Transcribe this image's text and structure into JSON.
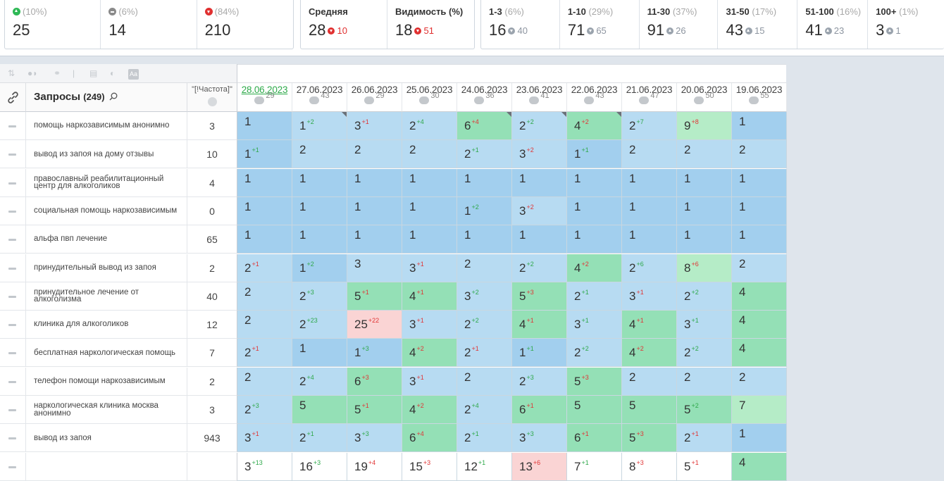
{
  "stats": {
    "top10": {
      "pct": "(10%)",
      "value": "25",
      "icon": "arrow-up-circle-icon"
    },
    "mid": {
      "pct": "(6%)",
      "value": "14",
      "icon": "minus-circle-icon"
    },
    "down": {
      "pct": "(84%)",
      "value": "210",
      "icon": "arrow-down-circle-icon"
    },
    "avg": {
      "label": "Средняя",
      "value": "28",
      "delta": "10"
    },
    "visibility": {
      "label": "Видимость (%)",
      "value": "18",
      "delta": "51"
    },
    "ranges": [
      {
        "label": "1-3",
        "pct": "(6%)",
        "value": "16",
        "delta": "40",
        "dir": "down"
      },
      {
        "label": "1-10",
        "pct": "(29%)",
        "value": "71",
        "delta": "65",
        "dir": "down"
      },
      {
        "label": "11-30",
        "pct": "(37%)",
        "value": "91",
        "delta": "26",
        "dir": "up"
      },
      {
        "label": "31-50",
        "pct": "(17%)",
        "value": "43",
        "delta": "15",
        "dir": "up"
      },
      {
        "label": "51-100",
        "pct": "(16%)",
        "value": "41",
        "delta": "23",
        "dir": "up"
      },
      {
        "label": "100+",
        "pct": "(1%)",
        "value": "3",
        "delta": "1",
        "dir": "up"
      }
    ]
  },
  "table": {
    "queries_label": "Запросы",
    "queries_count": "(249)",
    "freq_label": "\"[!Частота]\"",
    "dates": [
      {
        "date": "28.06.2023",
        "vis": "29",
        "active": true
      },
      {
        "date": "27.06.2023",
        "vis": "43"
      },
      {
        "date": "26.06.2023",
        "vis": "29"
      },
      {
        "date": "25.06.2023",
        "vis": "30"
      },
      {
        "date": "24.06.2023",
        "vis": "36"
      },
      {
        "date": "23.06.2023",
        "vis": "41"
      },
      {
        "date": "22.06.2023",
        "vis": "43"
      },
      {
        "date": "21.06.2023",
        "vis": "47"
      },
      {
        "date": "20.06.2023",
        "vis": "50"
      },
      {
        "date": "19.06.2023",
        "vis": "55"
      }
    ],
    "rows": [
      {
        "q": "помощь наркозависимым анонимно",
        "f": "3",
        "cells": [
          [
            "1",
            "",
            "",
            "mb"
          ],
          [
            "1",
            "+2",
            "up",
            "lb"
          ],
          [
            "3",
            "+1",
            "dn",
            "lb"
          ],
          [
            "2",
            "+4",
            "up",
            "lb"
          ],
          [
            "6",
            "+4",
            "dn",
            "gr"
          ],
          [
            "2",
            "+2",
            "up",
            "lb"
          ],
          [
            "4",
            "+2",
            "dn",
            "gr"
          ],
          [
            "2",
            "+7",
            "up",
            "lb"
          ],
          [
            "9",
            "+8",
            "dn",
            "lg"
          ],
          [
            "1",
            "",
            "",
            "mb"
          ]
        ]
      },
      {
        "q": "вывод из запоя на дому отзывы",
        "f": "10",
        "cells": [
          [
            "1",
            "+1",
            "up",
            "mb"
          ],
          [
            "2",
            "",
            "",
            "lb"
          ],
          [
            "2",
            "",
            "",
            "lb"
          ],
          [
            "2",
            "",
            "",
            "lb"
          ],
          [
            "2",
            "+1",
            "up",
            "lb"
          ],
          [
            "3",
            "+2",
            "dn",
            "lb"
          ],
          [
            "1",
            "+1",
            "up",
            "mb"
          ],
          [
            "2",
            "",
            "",
            "lb"
          ],
          [
            "2",
            "",
            "",
            "lb"
          ],
          [
            "2",
            "",
            "",
            "lb"
          ]
        ]
      },
      {
        "q": "православный реабилитационный центр для алкоголиков",
        "f": "4",
        "cells": [
          [
            "1",
            "",
            "",
            "mb"
          ],
          [
            "1",
            "",
            "",
            "mb"
          ],
          [
            "1",
            "",
            "",
            "mb"
          ],
          [
            "1",
            "",
            "",
            "mb"
          ],
          [
            "1",
            "",
            "",
            "mb"
          ],
          [
            "1",
            "",
            "",
            "mb"
          ],
          [
            "1",
            "",
            "",
            "mb"
          ],
          [
            "1",
            "",
            "",
            "mb"
          ],
          [
            "1",
            "",
            "",
            "mb"
          ],
          [
            "1",
            "",
            "",
            "mb"
          ]
        ]
      },
      {
        "q": "социальная помощь наркозависимым",
        "f": "0",
        "cells": [
          [
            "1",
            "",
            "",
            "mb"
          ],
          [
            "1",
            "",
            "",
            "mb"
          ],
          [
            "1",
            "",
            "",
            "mb"
          ],
          [
            "1",
            "",
            "",
            "mb"
          ],
          [
            "1",
            "+2",
            "up",
            "mb"
          ],
          [
            "3",
            "+2",
            "dn",
            "lb"
          ],
          [
            "1",
            "",
            "",
            "mb"
          ],
          [
            "1",
            "",
            "",
            "mb"
          ],
          [
            "1",
            "",
            "",
            "mb"
          ],
          [
            "1",
            "",
            "",
            "mb"
          ]
        ]
      },
      {
        "q": "альфа пвп лечение",
        "f": "65",
        "cells": [
          [
            "1",
            "",
            "",
            "mb"
          ],
          [
            "1",
            "",
            "",
            "mb"
          ],
          [
            "1",
            "",
            "",
            "mb"
          ],
          [
            "1",
            "",
            "",
            "mb"
          ],
          [
            "1",
            "",
            "",
            "mb"
          ],
          [
            "1",
            "",
            "",
            "mb"
          ],
          [
            "1",
            "",
            "",
            "mb"
          ],
          [
            "1",
            "",
            "",
            "mb"
          ],
          [
            "1",
            "",
            "",
            "mb"
          ],
          [
            "1",
            "",
            "",
            "mb"
          ]
        ]
      },
      {
        "q": "принудительный вывод из запоя",
        "f": "2",
        "cells": [
          [
            "2",
            "+1",
            "dn",
            "lb"
          ],
          [
            "1",
            "+2",
            "up",
            "mb"
          ],
          [
            "3",
            "",
            "",
            "lb"
          ],
          [
            "3",
            "+1",
            "dn",
            "lb"
          ],
          [
            "2",
            "",
            "",
            "lb"
          ],
          [
            "2",
            "+2",
            "up",
            "lb"
          ],
          [
            "4",
            "+2",
            "dn",
            "gr"
          ],
          [
            "2",
            "+6",
            "up",
            "lb"
          ],
          [
            "8",
            "+6",
            "dn",
            "lg"
          ],
          [
            "2",
            "",
            "",
            "lb"
          ]
        ]
      },
      {
        "q": "принудительное лечение от алкоголизма",
        "f": "40",
        "cells": [
          [
            "2",
            "",
            "",
            "lb"
          ],
          [
            "2",
            "+3",
            "up",
            "lb"
          ],
          [
            "5",
            "+1",
            "dn",
            "gr"
          ],
          [
            "4",
            "+1",
            "dn",
            "gr"
          ],
          [
            "3",
            "+2",
            "up",
            "lb"
          ],
          [
            "5",
            "+3",
            "dn",
            "gr"
          ],
          [
            "2",
            "+1",
            "up",
            "lb"
          ],
          [
            "3",
            "+1",
            "dn",
            "lb"
          ],
          [
            "2",
            "+2",
            "up",
            "lb"
          ],
          [
            "4",
            "",
            "",
            "gr"
          ]
        ]
      },
      {
        "q": "клиника для алкоголиков",
        "f": "12",
        "cells": [
          [
            "2",
            "",
            "",
            "lb"
          ],
          [
            "2",
            "+23",
            "up",
            "lb"
          ],
          [
            "25",
            "+22",
            "dn",
            "pk"
          ],
          [
            "3",
            "+1",
            "dn",
            "lb"
          ],
          [
            "2",
            "+2",
            "up",
            "lb"
          ],
          [
            "4",
            "+1",
            "dn",
            "gr"
          ],
          [
            "3",
            "+1",
            "up",
            "lb"
          ],
          [
            "4",
            "+1",
            "dn",
            "gr"
          ],
          [
            "3",
            "+1",
            "up",
            "lb"
          ],
          [
            "4",
            "",
            "",
            "gr"
          ]
        ]
      },
      {
        "q": "бесплатная наркологическая помощь",
        "f": "7",
        "cells": [
          [
            "2",
            "+1",
            "dn",
            "lb"
          ],
          [
            "1",
            "",
            "",
            "mb"
          ],
          [
            "1",
            "+3",
            "up",
            "mb"
          ],
          [
            "4",
            "+2",
            "dn",
            "gr"
          ],
          [
            "2",
            "+1",
            "dn",
            "lb"
          ],
          [
            "1",
            "+1",
            "up",
            "mb"
          ],
          [
            "2",
            "+2",
            "up",
            "lb"
          ],
          [
            "4",
            "+2",
            "dn",
            "gr"
          ],
          [
            "2",
            "+2",
            "up",
            "lb"
          ],
          [
            "4",
            "",
            "",
            "gr"
          ]
        ]
      },
      {
        "q": "телефон помощи наркозависимым",
        "f": "2",
        "cells": [
          [
            "2",
            "",
            "",
            "lb"
          ],
          [
            "2",
            "+4",
            "up",
            "lb"
          ],
          [
            "6",
            "+3",
            "dn",
            "gr"
          ],
          [
            "3",
            "+1",
            "dn",
            "lb"
          ],
          [
            "2",
            "",
            "",
            "lb"
          ],
          [
            "2",
            "+3",
            "up",
            "lb"
          ],
          [
            "5",
            "+3",
            "dn",
            "gr"
          ],
          [
            "2",
            "",
            "",
            "lb"
          ],
          [
            "2",
            "",
            "",
            "lb"
          ],
          [
            "2",
            "",
            "",
            "lb"
          ]
        ]
      },
      {
        "q": "наркологическая клиника москва анонимно",
        "f": "3",
        "cells": [
          [
            "2",
            "+3",
            "up",
            "lb"
          ],
          [
            "5",
            "",
            "",
            "gr"
          ],
          [
            "5",
            "+1",
            "dn",
            "gr"
          ],
          [
            "4",
            "+2",
            "dn",
            "gr"
          ],
          [
            "2",
            "+4",
            "up",
            "lb"
          ],
          [
            "6",
            "+1",
            "dn",
            "gr"
          ],
          [
            "5",
            "",
            "",
            "gr"
          ],
          [
            "5",
            "",
            "",
            "gr"
          ],
          [
            "5",
            "+2",
            "up",
            "gr"
          ],
          [
            "7",
            "",
            "",
            "lg"
          ]
        ]
      },
      {
        "q": "вывод из запоя",
        "f": "943",
        "cells": [
          [
            "3",
            "+1",
            "dn",
            "lb"
          ],
          [
            "2",
            "+1",
            "up",
            "lb"
          ],
          [
            "3",
            "+3",
            "up",
            "lb"
          ],
          [
            "6",
            "+4",
            "dn",
            "gr"
          ],
          [
            "2",
            "+1",
            "up",
            "lb"
          ],
          [
            "3",
            "+3",
            "up",
            "lb"
          ],
          [
            "6",
            "+1",
            "dn",
            "gr"
          ],
          [
            "5",
            "+3",
            "dn",
            "gr"
          ],
          [
            "2",
            "+1",
            "dn",
            "lb"
          ],
          [
            "1",
            "",
            "",
            "mb"
          ]
        ]
      },
      {
        "q": "",
        "f": "",
        "cells": [
          [
            "3",
            "+13",
            "up",
            "wh"
          ],
          [
            "16",
            "+3",
            "up",
            "wh"
          ],
          [
            "19",
            "+4",
            "dn",
            "wh"
          ],
          [
            "15",
            "+3",
            "dn",
            "wh"
          ],
          [
            "12",
            "+1",
            "up",
            "wh"
          ],
          [
            "13",
            "+6",
            "dn",
            "pk"
          ],
          [
            "7",
            "+1",
            "up",
            "wh"
          ],
          [
            "8",
            "+3",
            "dn",
            "wh"
          ],
          [
            "5",
            "+1",
            "dn",
            "wh"
          ],
          [
            "4",
            "",
            "",
            "gr"
          ]
        ]
      }
    ]
  }
}
